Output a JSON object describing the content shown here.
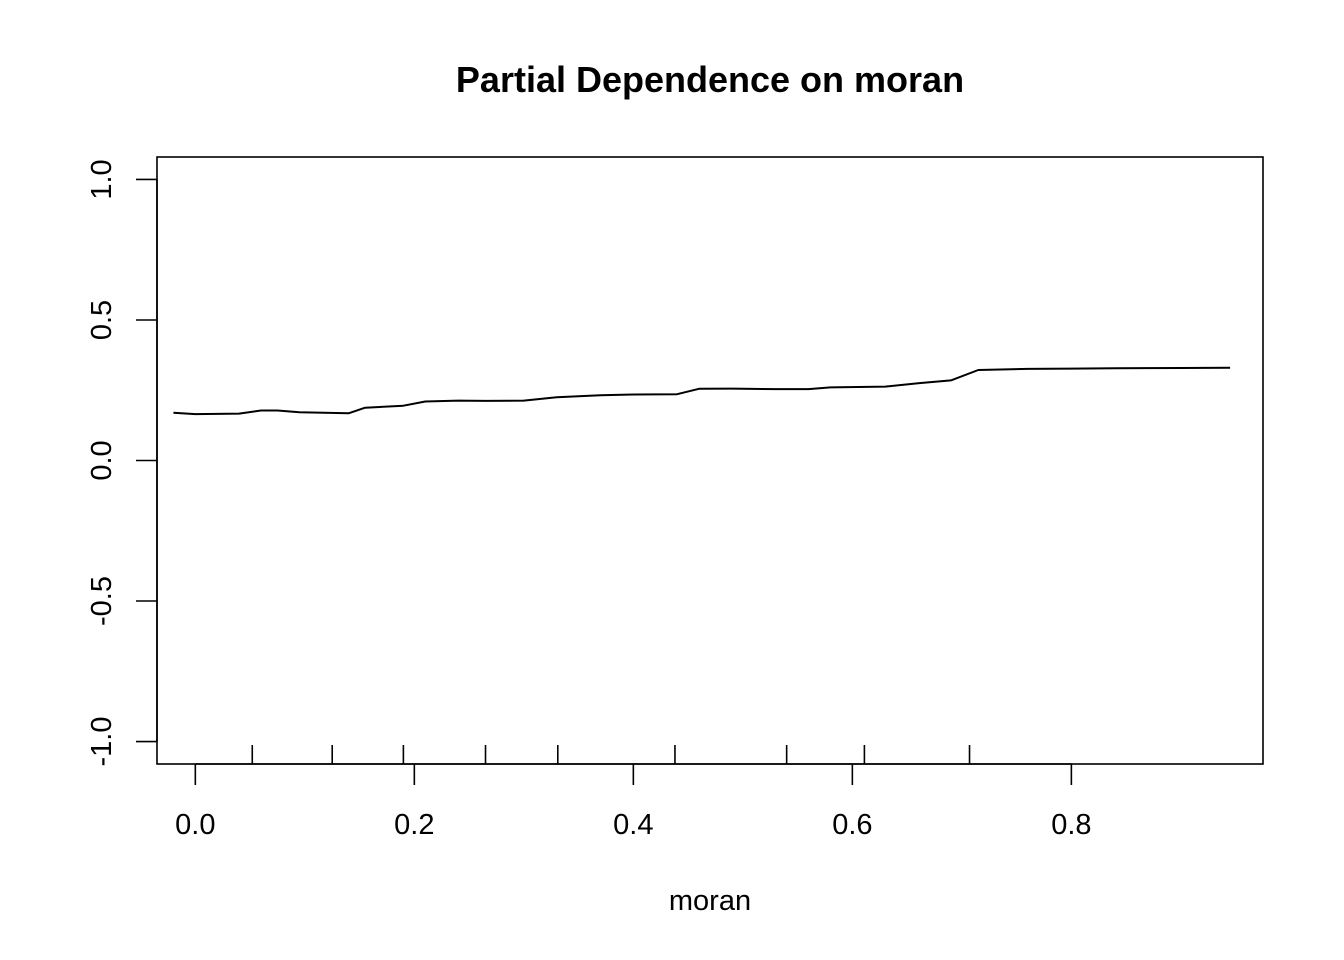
{
  "chart_data": {
    "type": "line",
    "title": "Partial Dependence on moran",
    "xlabel": "moran",
    "ylabel": "",
    "xlim": [
      -0.035,
      0.975
    ],
    "ylim": [
      -1.08,
      1.08
    ],
    "x_ticks": [
      0.0,
      0.2,
      0.4,
      0.6,
      0.8
    ],
    "x_tick_labels": [
      "0.0",
      "0.2",
      "0.4",
      "0.6",
      "0.8"
    ],
    "y_ticks": [
      -1.0,
      -0.5,
      0.0,
      0.5,
      1.0
    ],
    "y_tick_labels": [
      "-1.0",
      "-0.5",
      "0.0",
      "0.5",
      "1.0"
    ],
    "grid": false,
    "legend": "none",
    "rug": [
      0.052,
      0.125,
      0.19,
      0.265,
      0.331,
      0.438,
      0.54,
      0.611,
      0.707
    ],
    "series": [
      {
        "x": [
          -0.02,
          0.0,
          0.04,
          0.06,
          0.075,
          0.095,
          0.14,
          0.155,
          0.19,
          0.21,
          0.24,
          0.265,
          0.3,
          0.33,
          0.37,
          0.4,
          0.44,
          0.46,
          0.49,
          0.53,
          0.56,
          0.58,
          0.63,
          0.66,
          0.69,
          0.715,
          0.76,
          0.8,
          0.84,
          0.9,
          0.945
        ],
        "y": [
          0.17,
          0.165,
          0.167,
          0.178,
          0.178,
          0.172,
          0.168,
          0.188,
          0.195,
          0.21,
          0.213,
          0.212,
          0.213,
          0.225,
          0.232,
          0.235,
          0.236,
          0.255,
          0.256,
          0.254,
          0.254,
          0.26,
          0.263,
          0.275,
          0.285,
          0.322,
          0.326,
          0.327,
          0.328,
          0.329,
          0.33
        ]
      }
    ]
  }
}
